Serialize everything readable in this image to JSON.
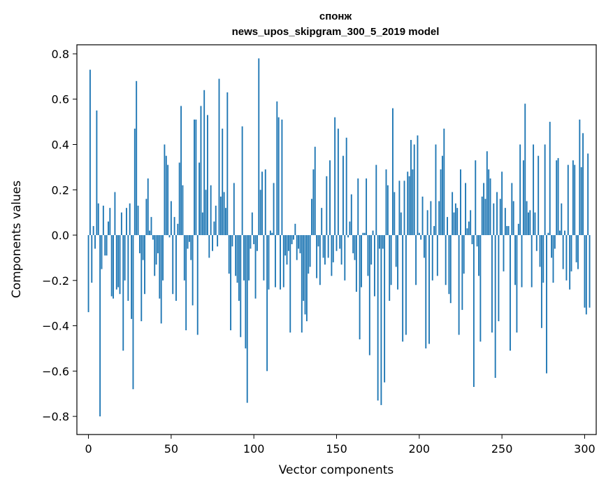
{
  "chart_data": {
    "type": "bar",
    "title": "спонж",
    "subtitle": "news_upos_skipgram_300_5_2019 model",
    "xlabel": "Vector components",
    "ylabel": "Components values",
    "xlim": [
      -7,
      307
    ],
    "ylim": [
      -0.88,
      0.84
    ],
    "xticks": [
      0,
      50,
      100,
      150,
      200,
      250,
      300
    ],
    "xtick_labels": [
      "0",
      "50",
      "100",
      "150",
      "200",
      "250",
      "300"
    ],
    "yticks": [
      -0.8,
      -0.6,
      -0.4,
      -0.2,
      0.0,
      0.2,
      0.4,
      0.6,
      0.8
    ],
    "ytick_labels": [
      "−0.8",
      "−0.6",
      "−0.4",
      "−0.2",
      "0.0",
      "0.2",
      "0.4",
      "0.6",
      "0.8"
    ],
    "bar_color": "#1f77b4",
    "grid": false,
    "legend": "none",
    "values": [
      -0.34,
      0.73,
      -0.21,
      0.04,
      -0.06,
      0.55,
      0.14,
      -0.8,
      -0.15,
      0.13,
      -0.09,
      -0.09,
      0.06,
      0.12,
      -0.27,
      -0.28,
      0.19,
      -0.24,
      -0.23,
      -0.26,
      0.1,
      -0.51,
      -0.2,
      0.12,
      -0.29,
      0.14,
      -0.37,
      -0.68,
      0.47,
      0.68,
      0.13,
      -0.08,
      -0.38,
      -0.11,
      -0.26,
      0.16,
      0.25,
      0.02,
      0.08,
      -0.02,
      -0.18,
      -0.13,
      -0.08,
      -0.28,
      -0.39,
      -0.2,
      0.4,
      0.35,
      0.31,
      -0.01,
      0.15,
      -0.26,
      0.08,
      -0.29,
      0.05,
      0.32,
      0.57,
      0.22,
      -0.2,
      -0.42,
      -0.06,
      -0.03,
      -0.11,
      -0.31,
      0.51,
      0.51,
      -0.44,
      0.32,
      0.57,
      0.1,
      0.64,
      0.2,
      0.53,
      -0.1,
      0.22,
      -0.07,
      0.06,
      0.13,
      -0.05,
      0.69,
      0.17,
      0.47,
      0.19,
      0.12,
      0.63,
      -0.17,
      -0.42,
      -0.05,
      0.23,
      -0.18,
      -0.21,
      -0.29,
      -0.45,
      0.48,
      -0.2,
      -0.5,
      -0.74,
      -0.2,
      -0.06,
      0.1,
      -0.04,
      -0.28,
      -0.07,
      0.78,
      0.2,
      0.28,
      -0.2,
      0.29,
      -0.6,
      -0.24,
      0.02,
      0.01,
      0.23,
      -0.23,
      0.59,
      0.52,
      -0.24,
      0.51,
      -0.23,
      -0.09,
      -0.13,
      -0.07,
      -0.43,
      -0.04,
      -0.02,
      0.05,
      -0.11,
      -0.06,
      -0.08,
      -0.43,
      -0.29,
      -0.35,
      -0.38,
      -0.17,
      -0.14,
      0.16,
      0.29,
      0.39,
      -0.19,
      -0.05,
      -0.22,
      0.12,
      -0.1,
      -0.13,
      0.26,
      -0.1,
      0.33,
      -0.18,
      -0.12,
      0.52,
      -0.07,
      0.47,
      -0.06,
      -0.13,
      0.35,
      -0.2,
      0.43,
      -0.01,
      0.06,
      0.18,
      -0.08,
      -0.11,
      -0.25,
      0.25,
      -0.46,
      -0.23,
      0.01,
      0.01,
      0.25,
      -0.18,
      -0.53,
      -0.13,
      0.02,
      -0.27,
      0.31,
      -0.73,
      -0.06,
      -0.75,
      -0.06,
      -0.65,
      0.29,
      0.22,
      -0.29,
      -0.22,
      0.56,
      0.19,
      -0.14,
      -0.24,
      0.24,
      0.1,
      -0.47,
      0.24,
      -0.44,
      0.28,
      0.26,
      0.42,
      0.29,
      0.4,
      -0.22,
      0.44,
      0.01,
      -0.02,
      0.17,
      -0.1,
      -0.5,
      0.11,
      -0.48,
      0.15,
      -0.2,
      0.04,
      0.4,
      -0.18,
      0.15,
      0.29,
      0.35,
      0.47,
      -0.22,
      0.08,
      -0.26,
      -0.3,
      0.19,
      0.1,
      0.14,
      0.12,
      -0.44,
      0.29,
      -0.33,
      -0.17,
      0.23,
      0.03,
      0.06,
      0.11,
      -0.04,
      -0.67,
      0.33,
      -0.05,
      -0.18,
      -0.47,
      0.17,
      0.23,
      0.16,
      0.37,
      0.29,
      0.25,
      -0.43,
      0.14,
      -0.63,
      0.19,
      -0.38,
      0.16,
      0.28,
      -0.16,
      0.12,
      0.04,
      0.04,
      -0.51,
      0.23,
      0.15,
      -0.22,
      -0.43,
      0.05,
      0.4,
      -0.23,
      0.33,
      0.58,
      0.15,
      0.1,
      0.11,
      -0.23,
      0.4,
      0.1,
      -0.07,
      0.35,
      -0.14,
      -0.41,
      -0.21,
      0.4,
      -0.61,
      0.01,
      0.5,
      -0.1,
      -0.21,
      -0.06,
      0.33,
      0.34,
      0.02,
      0.14,
      -0.15,
      0.02,
      -0.2,
      0.31,
      -0.24,
      -0.16,
      0.33,
      0.31,
      -0.12,
      -0.15,
      0.51,
      0.3,
      0.45,
      -0.32,
      -0.35,
      0.36,
      -0.32
    ]
  }
}
